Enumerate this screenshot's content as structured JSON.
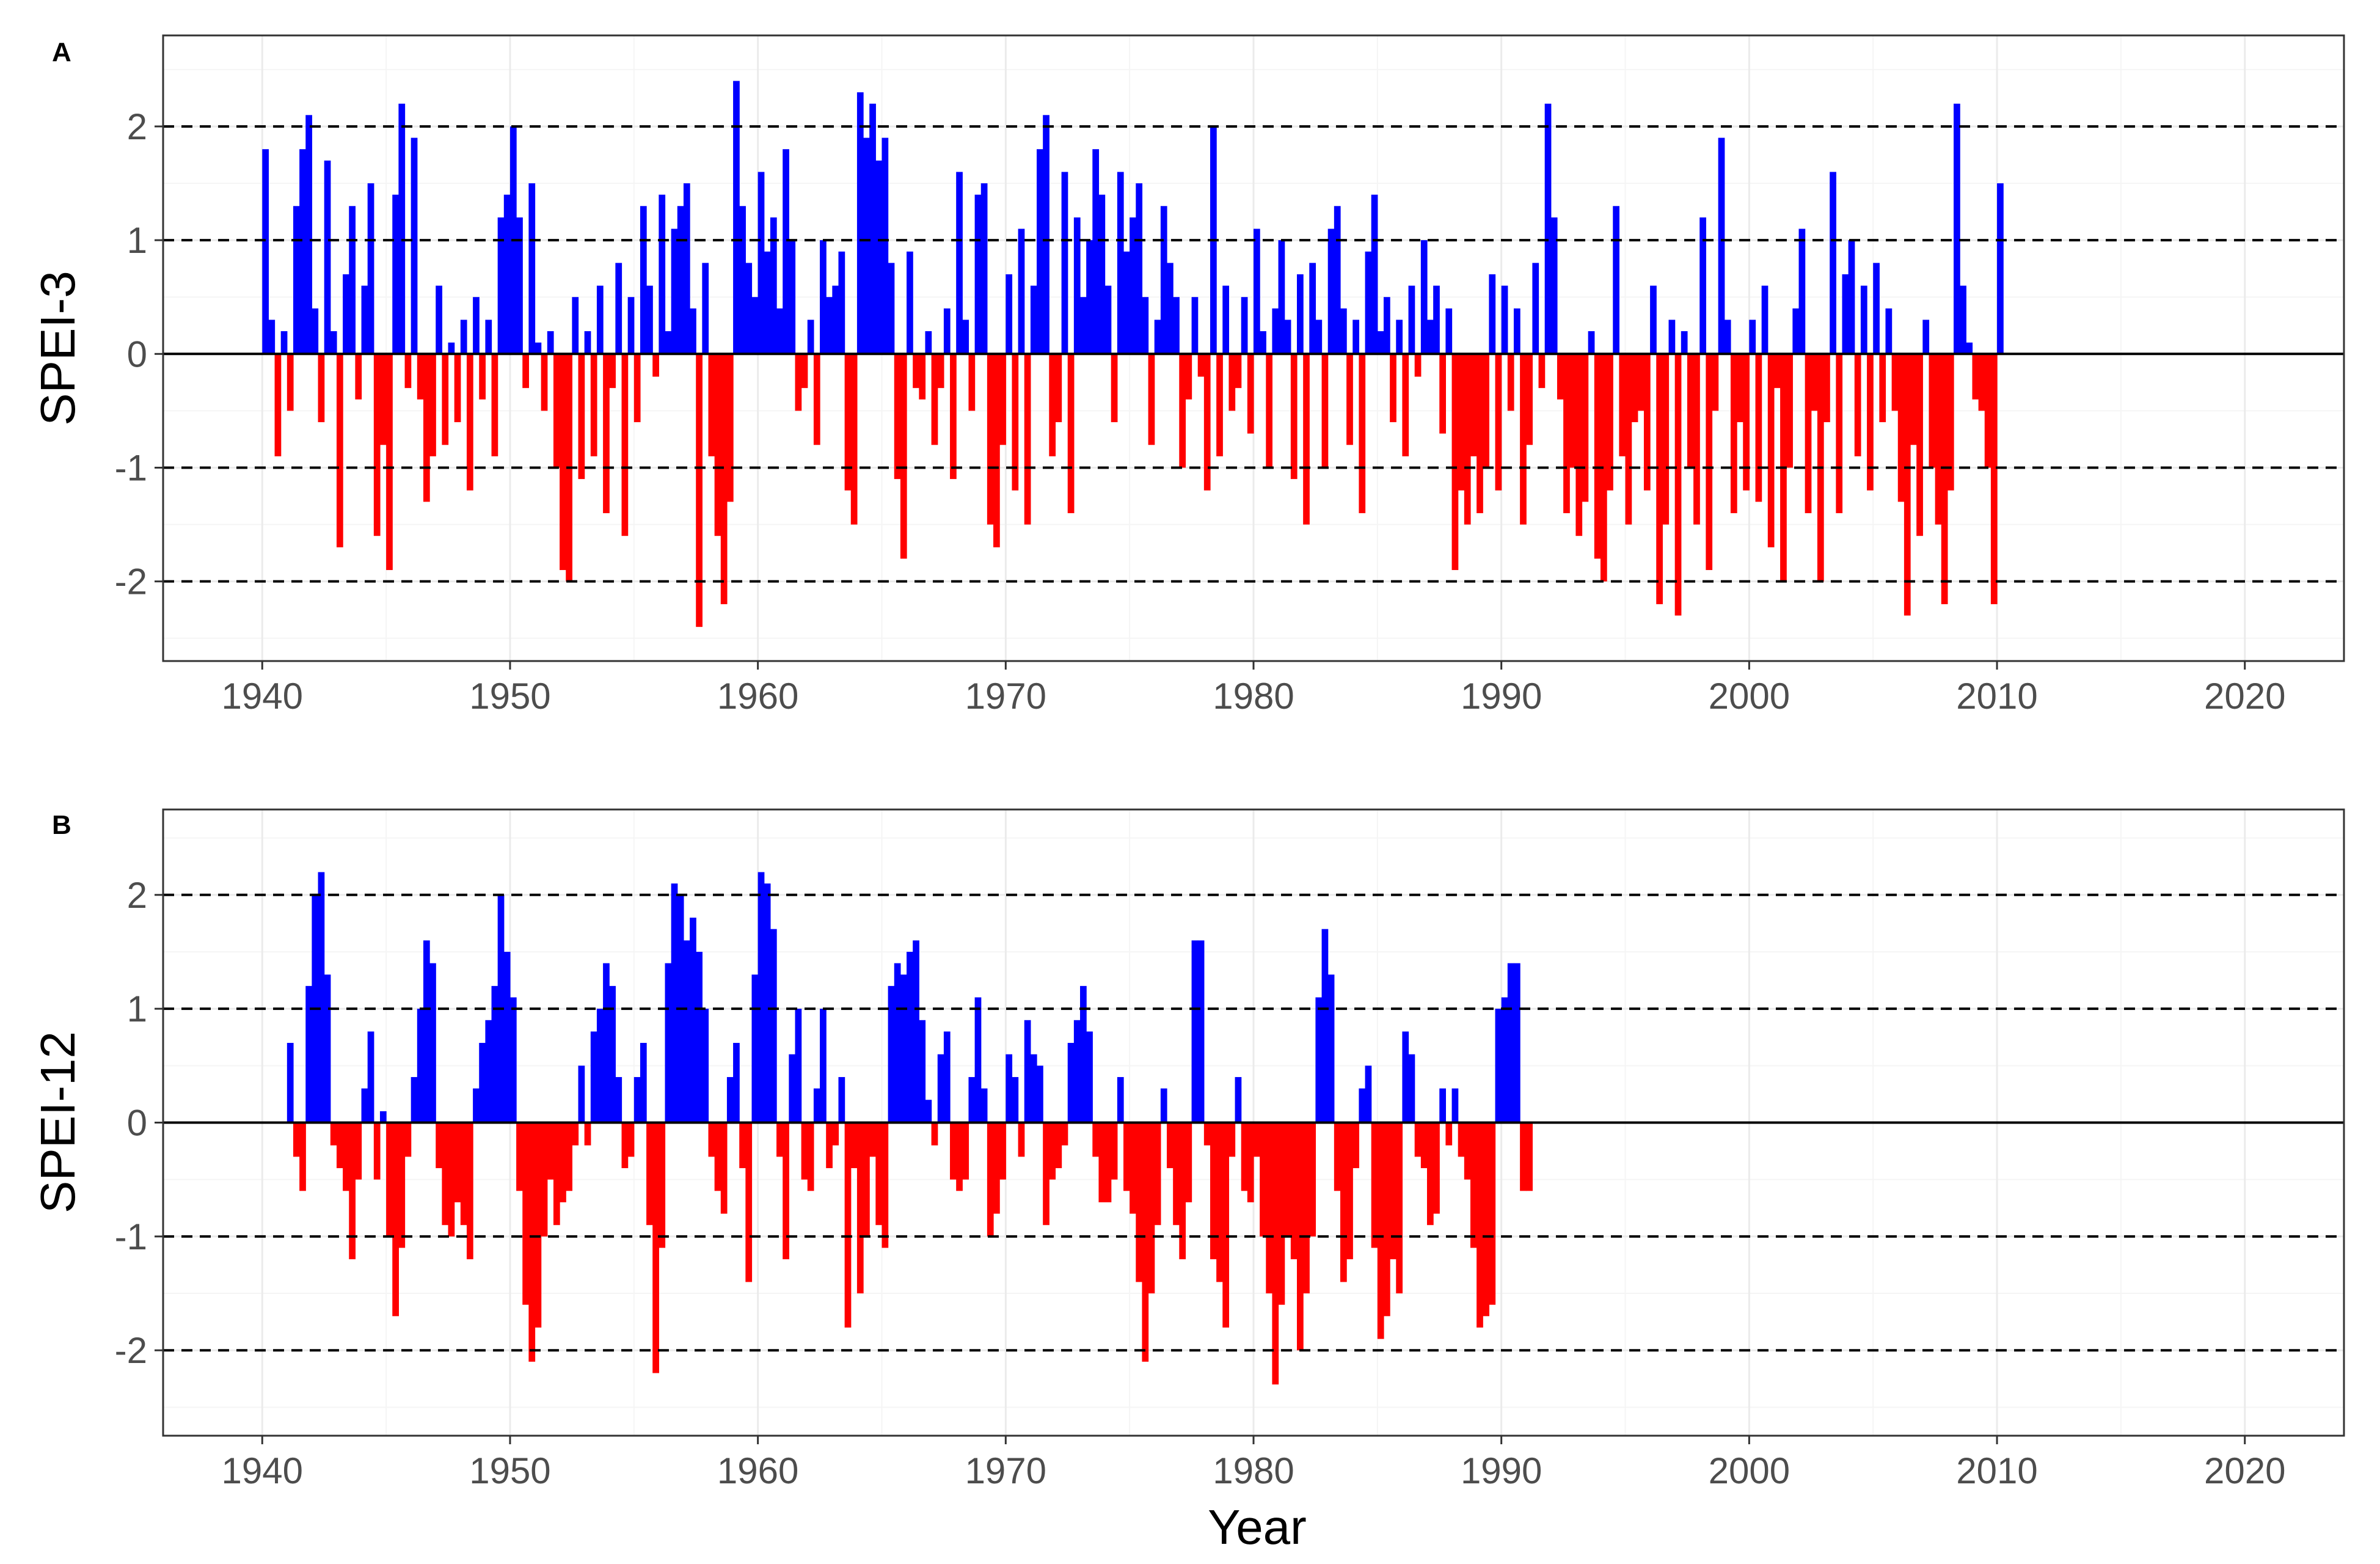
{
  "chart_data": [
    {
      "type": "area",
      "panel_label": "A",
      "ylabel": "SPEI-3",
      "xlabel": "",
      "xlim": [
        1936,
        2024
      ],
      "ylim": [
        -2.7,
        2.8
      ],
      "x_ticks": [
        1940,
        1950,
        1960,
        1970,
        1980,
        1990,
        2000,
        2010,
        2020
      ],
      "y_ticks": [
        -2,
        -1,
        0,
        1,
        2
      ],
      "y_tick_labels": [
        "-2",
        "-1",
        "0",
        "1",
        "2"
      ],
      "x_tick_labels": [
        "1940",
        "1950",
        "1960",
        "1970",
        "1980",
        "1990",
        "2000",
        "2010",
        "2020"
      ],
      "reference_lines": [
        -2,
        -1,
        1,
        2
      ],
      "positive_color": "#0000ff",
      "negative_color": "#ff0000",
      "grid": true,
      "series": {
        "name": "SPEI-3",
        "x_start": 1940.0,
        "step_years": 0.25,
        "values": [
          1.8,
          0.3,
          -0.9,
          0.2,
          -0.5,
          1.3,
          1.8,
          2.1,
          0.4,
          -0.6,
          1.7,
          0.2,
          -1.7,
          0.7,
          1.3,
          -0.4,
          0.6,
          1.5,
          -1.6,
          -0.8,
          -1.9,
          1.4,
          2.2,
          -0.3,
          1.9,
          -0.4,
          -1.3,
          -0.9,
          0.6,
          -0.8,
          0.1,
          -0.6,
          0.3,
          -1.2,
          0.5,
          -0.4,
          0.3,
          -0.9,
          1.2,
          1.4,
          2.0,
          1.2,
          -0.3,
          1.5,
          0.1,
          -0.5,
          0.2,
          -1.0,
          -1.9,
          -2.0,
          0.5,
          -1.1,
          0.2,
          -0.9,
          0.6,
          -1.4,
          -0.3,
          0.8,
          -1.6,
          0.5,
          -0.6,
          1.3,
          0.6,
          -0.2,
          1.4,
          0.2,
          1.1,
          1.3,
          1.5,
          0.4,
          -2.4,
          0.8,
          -0.9,
          -1.6,
          -2.2,
          -1.3,
          2.4,
          1.3,
          0.8,
          0.5,
          1.6,
          0.9,
          1.2,
          0.4,
          1.8,
          1.0,
          -0.5,
          -0.3,
          0.3,
          -0.8,
          1.0,
          0.5,
          0.6,
          0.9,
          -1.2,
          -1.5,
          2.3,
          1.9,
          2.2,
          1.7,
          1.9,
          0.8,
          -1.1,
          -1.8,
          0.9,
          -0.3,
          -0.4,
          0.2,
          -0.8,
          -0.3,
          0.4,
          -1.1,
          1.6,
          0.3,
          -0.5,
          1.4,
          1.5,
          -1.5,
          -1.7,
          -0.8,
          0.7,
          -1.2,
          1.1,
          -1.5,
          0.6,
          1.8,
          2.1,
          -0.9,
          -0.6,
          1.6,
          -1.4,
          1.2,
          0.5,
          1.0,
          1.8,
          1.4,
          0.6,
          -0.6,
          1.6,
          0.9,
          1.2,
          1.5,
          0.5,
          -0.8,
          0.3,
          1.3,
          0.8,
          0.5,
          -1.0,
          -0.4,
          0.5,
          -0.2,
          -1.2,
          2.0,
          -0.9,
          0.6,
          -0.5,
          -0.3,
          0.5,
          -0.7,
          1.1,
          0.2,
          -1.0,
          0.4,
          1.0,
          0.3,
          -1.1,
          0.7,
          -1.5,
          0.8,
          0.3,
          -1.0,
          1.1,
          1.3,
          0.4,
          -0.8,
          0.3,
          -1.4,
          0.9,
          1.4,
          0.2,
          0.5,
          -0.6,
          0.3,
          -0.9,
          0.6,
          -0.2,
          1.0,
          0.3,
          0.6,
          -0.7,
          0.4,
          -1.9,
          -1.2,
          -1.5,
          -0.9,
          -1.4,
          -1.0,
          0.7,
          -1.2,
          0.6,
          -0.5,
          0.4,
          -1.5,
          -0.8,
          0.8,
          -0.3,
          2.2,
          1.2,
          -0.4,
          -1.4,
          -1.0,
          -1.6,
          -1.3,
          0.2,
          -1.8,
          -2.0,
          -1.2,
          1.3,
          -0.9,
          -1.5,
          -0.6,
          -0.5,
          -1.2,
          0.6,
          -2.2,
          -1.5,
          0.3,
          -2.3,
          0.2,
          -1.0,
          -1.5,
          1.2,
          -1.9,
          -0.5,
          1.9,
          0.3,
          -1.4,
          -0.6,
          -1.2,
          0.3,
          -1.3,
          0.6,
          -1.7,
          -0.3,
          -2.0,
          -1.0,
          0.4,
          1.1,
          -1.4,
          -0.5,
          -2.0,
          -0.6,
          1.6,
          -1.4,
          0.7,
          1.0,
          -0.9,
          0.6,
          -1.2,
          0.8,
          -0.6,
          0.4,
          -0.5,
          -1.3,
          -2.3,
          -0.8,
          -1.6,
          0.3,
          -1.0,
          -1.5,
          -2.2,
          -1.2,
          2.2,
          0.6,
          0.1,
          -0.4,
          -0.5,
          -1.0,
          -2.2,
          1.5
        ]
      }
    },
    {
      "type": "area",
      "panel_label": "B",
      "ylabel": "SPEI-12",
      "xlabel": "Year",
      "xlim": [
        1936,
        2024
      ],
      "ylim": [
        -2.75,
        2.75
      ],
      "x_ticks": [
        1940,
        1950,
        1960,
        1970,
        1980,
        1990,
        2000,
        2010,
        2020
      ],
      "y_ticks": [
        -2,
        -1,
        0,
        1,
        2
      ],
      "y_tick_labels": [
        "-2",
        "-1",
        "0",
        "1",
        "2"
      ],
      "x_tick_labels": [
        "1940",
        "1950",
        "1960",
        "1970",
        "1980",
        "1990",
        "2000",
        "2010",
        "2020"
      ],
      "reference_lines": [
        -2,
        -1,
        1,
        2
      ],
      "positive_color": "#0000ff",
      "negative_color": "#ff0000",
      "grid": true,
      "series": {
        "name": "SPEI-12",
        "x_start": 1941.0,
        "step_years": 0.25,
        "values": [
          0.7,
          -0.3,
          -0.6,
          1.2,
          2.0,
          2.2,
          1.3,
          -0.2,
          -0.4,
          -0.6,
          -1.2,
          -0.5,
          0.3,
          0.8,
          -0.5,
          0.1,
          -1.0,
          -1.7,
          -1.1,
          -0.3,
          0.4,
          1.0,
          1.6,
          1.4,
          -0.4,
          -0.9,
          -1.0,
          -0.7,
          -0.9,
          -1.2,
          0.3,
          0.7,
          0.9,
          1.2,
          2.0,
          1.5,
          1.1,
          -0.6,
          -1.6,
          -2.1,
          -1.8,
          -1.0,
          -0.5,
          -0.9,
          -0.7,
          -0.6,
          -0.2,
          0.5,
          -0.2,
          0.8,
          1.0,
          1.4,
          1.2,
          0.4,
          -0.4,
          -0.3,
          0.4,
          0.7,
          -0.9,
          -2.2,
          -1.1,
          1.4,
          2.1,
          2.0,
          1.6,
          1.8,
          1.5,
          1.0,
          -0.3,
          -0.6,
          -0.8,
          0.4,
          0.7,
          -0.4,
          -1.4,
          1.3,
          2.2,
          2.1,
          1.7,
          -0.3,
          -1.2,
          0.6,
          1.0,
          -0.5,
          -0.6,
          0.3,
          1.0,
          -0.4,
          -0.2,
          0.4,
          -1.8,
          -0.4,
          -1.5,
          -1.0,
          -0.3,
          -0.9,
          -1.1,
          1.2,
          1.4,
          1.3,
          1.5,
          1.6,
          0.9,
          0.2,
          -0.2,
          0.6,
          0.8,
          -0.5,
          -0.6,
          -0.5,
          0.4,
          1.1,
          0.3,
          -1.0,
          -0.8,
          -0.5,
          0.6,
          0.4,
          -0.3,
          0.9,
          0.6,
          0.5,
          -0.9,
          -0.5,
          -0.4,
          -0.2,
          0.7,
          0.9,
          1.2,
          0.8,
          -0.3,
          -0.7,
          -0.7,
          -0.5,
          0.4,
          -0.6,
          -0.8,
          -1.4,
          -2.1,
          -1.5,
          -0.9,
          0.3,
          -0.4,
          -0.9,
          -1.2,
          -0.7,
          1.6,
          1.6,
          -0.2,
          -1.2,
          -1.4,
          -1.8,
          -0.3,
          0.4,
          -0.6,
          -0.7,
          -0.3,
          -1.0,
          -1.5,
          -2.3,
          -1.6,
          -1.0,
          -1.2,
          -2.0,
          -1.5,
          -1.0,
          1.1,
          1.7,
          1.3,
          -0.6,
          -1.4,
          -1.2,
          -0.4,
          0.3,
          0.5,
          -1.1,
          -1.9,
          -1.7,
          -1.2,
          -1.5,
          0.8,
          0.6,
          -0.3,
          -0.4,
          -0.9,
          -0.8,
          0.3,
          -0.2,
          0.3,
          -0.3,
          -0.5,
          -1.1,
          -1.8,
          -1.7,
          -1.6,
          1.0,
          1.1,
          1.4,
          1.4,
          -0.6,
          -0.6
        ]
      }
    }
  ]
}
